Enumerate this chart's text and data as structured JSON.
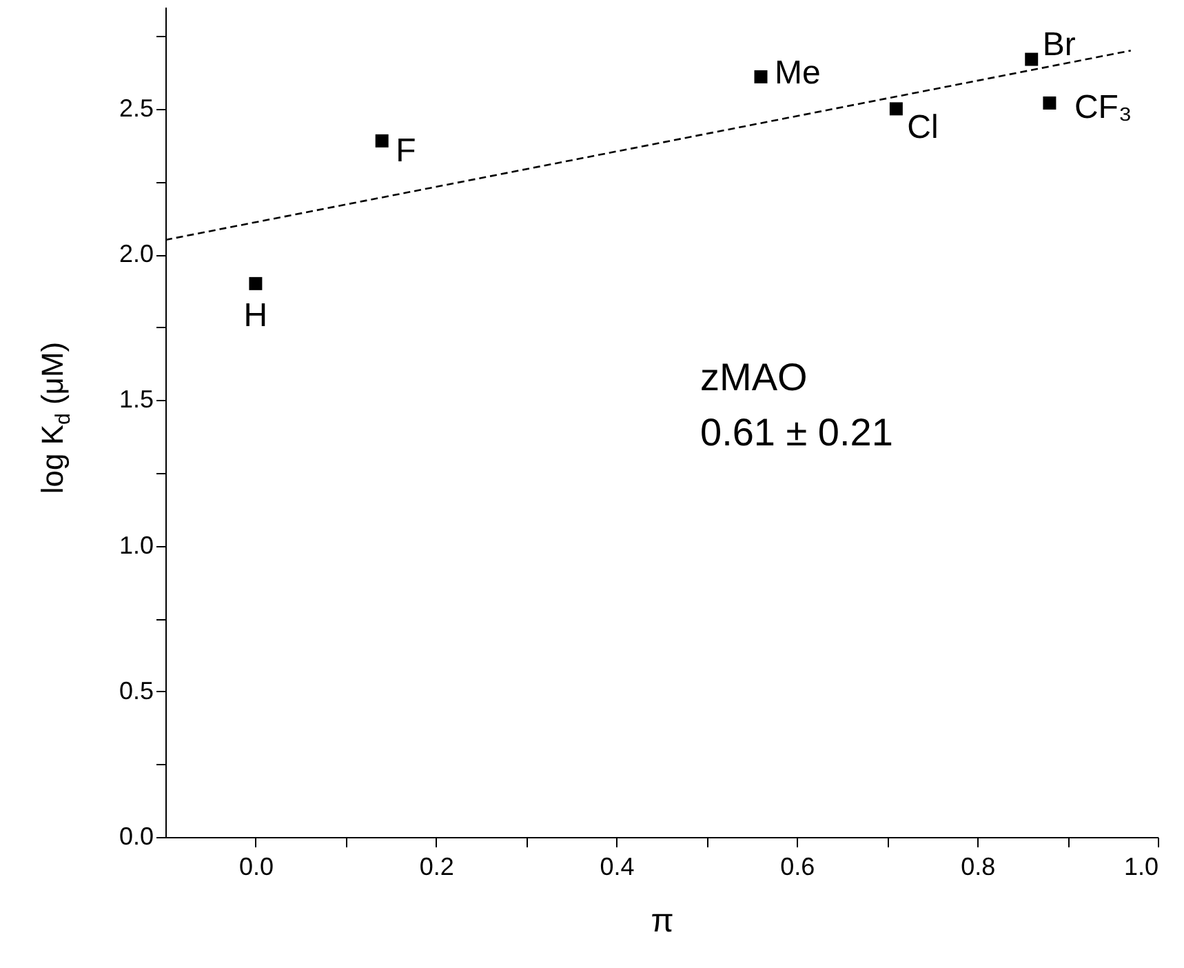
{
  "chart_data": {
    "type": "scatter",
    "xlabel": "π",
    "ylabel": "log K$_{d}$ (μM)",
    "xlim": [
      -0.1,
      1.0
    ],
    "ylim": [
      0,
      2.85
    ],
    "xticks": [
      {
        "value": 0,
        "label": "0.0"
      },
      {
        "value": 0.1,
        "label": null
      },
      0.2,
      {
        "value": 0.3,
        "label": null
      },
      0.4,
      {
        "value": 0.5,
        "label": null
      },
      0.6,
      {
        "value": 0.7,
        "label": null
      },
      0.8,
      {
        "value": 0.9,
        "label": null
      },
      {
        "value": 1,
        "label": "1.0"
      }
    ],
    "yticks": [
      {
        "value": 0,
        "label": "0.0"
      },
      {
        "value": 0.25,
        "label": null
      },
      0.5,
      {
        "value": 0.75,
        "label": null
      },
      {
        "value": 1,
        "label": "1.0"
      },
      {
        "value": 1.25,
        "label": null
      },
      1.5,
      {
        "value": 1.75,
        "label": null
      },
      {
        "value": 2,
        "label": "2.0"
      },
      {
        "value": 2.25,
        "label": null
      },
      2.5,
      {
        "value": 2.75,
        "label": null
      }
    ],
    "grid": false,
    "series": [
      {
        "marker": "square",
        "color": "#000000",
        "x": [
          0,
          0.14,
          0.56,
          0.71,
          0.86,
          0.88
        ],
        "values": [
          1.9,
          2.39,
          2.61,
          2.5,
          2.67,
          2.52
        ]
      },
      {
        "type": "line",
        "color": "#000000",
        "line_style": "dashed",
        "x": [
          -0.1,
          0.97
        ],
        "values": [
          2.05,
          2.7
        ]
      }
    ],
    "annotations": [
      {
        "text": "H",
        "x": 0,
        "y": 1.9
      },
      {
        "text": "F",
        "x": 0.14,
        "y": 2.39
      },
      {
        "text": "Me",
        "x": 0.56,
        "y": 2.61
      },
      {
        "text": "Cl",
        "x": 0.71,
        "y": 2.5
      },
      {
        "text": "Br",
        "x": 0.86,
        "y": 2.67
      },
      {
        "text": "CF₃",
        "x": 0.88,
        "y": 2.52
      },
      "zMAO",
      "0.61 ± 0.21"
    ]
  }
}
